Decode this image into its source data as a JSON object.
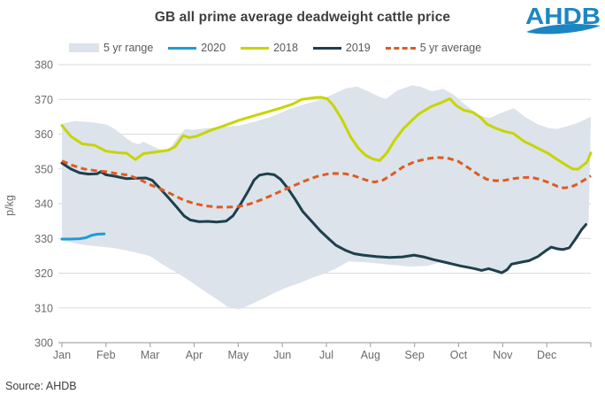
{
  "header": {
    "title": "GB all prime average deadweight cattle price",
    "logo_text": "AHDB",
    "logo_color": "#1b86c3"
  },
  "legend": {
    "items": [
      {
        "label": "5 yr range",
        "color": "#dce3ea",
        "swatch": "area"
      },
      {
        "label": "2020",
        "color": "#1d9cd8",
        "swatch": "line"
      },
      {
        "label": "2018",
        "color": "#c8d400",
        "swatch": "line"
      },
      {
        "label": "2019",
        "color": "#1e3f4c",
        "swatch": "line"
      },
      {
        "label": "5 yr average",
        "color": "#df5b1f",
        "swatch": "dash"
      }
    ]
  },
  "source": "Source: AHDB",
  "chart_data": {
    "type": "line",
    "title": "GB all prime average deadweight cattle price",
    "ylabel": "p/kg",
    "ylim": [
      300,
      380
    ],
    "yticks": [
      380,
      370,
      360,
      350,
      340,
      330,
      320,
      310,
      300
    ],
    "xtick_labels": [
      "Jan",
      "Feb",
      "Mar",
      "Apr",
      "May",
      "Jun",
      "Jul",
      "Aug",
      "Sep",
      "Oct",
      "Nov",
      "Dec"
    ],
    "x_unit": "month (0 = start Jan, 12 = end Dec)",
    "grid": "horizontal",
    "legend_position": "top",
    "range": {
      "name": "5 yr range",
      "fill": "#dce3ea",
      "top_x": [
        0,
        0.3,
        0.7,
        1.0,
        1.2,
        1.45,
        1.6,
        1.75,
        1.85,
        2.0,
        2.2,
        2.4,
        2.65,
        2.8,
        2.95,
        3.3,
        3.7,
        4.0,
        4.4,
        4.75,
        5.15,
        5.55,
        5.85,
        6.1,
        6.45,
        6.7,
        7.0,
        7.2,
        7.35,
        7.6,
        7.95,
        8.15,
        8.4,
        8.65,
        8.9,
        9.1,
        9.3,
        9.5,
        9.7,
        9.95,
        10.25,
        10.5,
        10.8,
        11.05,
        11.25,
        11.65,
        12
      ],
      "top_values": [
        363,
        363.8,
        363.4,
        362.8,
        361.5,
        358.9,
        357.6,
        357.1,
        357.8,
        356.9,
        355.7,
        355.0,
        359.5,
        361.5,
        361.2,
        361.7,
        362.1,
        362.4,
        363.7,
        365.0,
        367.1,
        368.8,
        369.8,
        371.2,
        373.2,
        373.7,
        372.0,
        370.8,
        370.1,
        372.5,
        374.1,
        373.6,
        372.3,
        373.1,
        371.2,
        369.0,
        367.0,
        365.3,
        364.6,
        366.0,
        367.5,
        365.0,
        362.8,
        361.7,
        361.5,
        363.0,
        365.0
      ],
      "bottom_x": [
        0,
        0.4,
        0.8,
        1.2,
        1.6,
        2.0,
        2.3,
        2.6,
        2.9,
        3.2,
        3.5,
        3.75,
        4.0,
        4.2,
        4.5,
        4.8,
        5.1,
        5.4,
        5.7,
        5.95,
        6.2,
        6.5,
        6.9,
        7.4,
        7.9,
        8.3,
        8.63,
        9.04,
        9.4,
        9.52,
        9.68,
        9.98,
        10.2,
        10.6,
        10.96,
        11.1,
        11.37,
        11.65,
        11.89,
        11.95
      ],
      "bottom_values": [
        329.4,
        328.3,
        327.7,
        327.2,
        326.2,
        324.9,
        322.4,
        320.2,
        317.8,
        315.1,
        312.6,
        310.4,
        309.6,
        310.5,
        312.3,
        314.2,
        315.9,
        317.2,
        318.8,
        319.8,
        321.2,
        323.4,
        323.1,
        322.5,
        321.9,
        322.1,
        323.3,
        322.1,
        321.2,
        320.8,
        321.3,
        320.1,
        322.6,
        323.6,
        326.3,
        327.5,
        326.8,
        329.8,
        334.0,
        334.5
      ]
    },
    "series": [
      {
        "name": "2018",
        "color": "#c8d400",
        "style": "solid",
        "x": [
          0,
          0.2,
          0.46,
          0.74,
          1.0,
          1.24,
          1.47,
          1.67,
          1.85,
          2.15,
          2.41,
          2.57,
          2.75,
          2.89,
          3.05,
          3.35,
          3.65,
          4.02,
          4.36,
          4.66,
          4.96,
          5.24,
          5.44,
          5.72,
          5.88,
          6.02,
          6.16,
          6.35,
          6.55,
          6.73,
          6.89,
          7.05,
          7.21,
          7.37,
          7.55,
          7.75,
          7.95,
          8.11,
          8.39,
          8.59,
          8.8,
          8.96,
          9.12,
          9.32,
          9.5,
          9.64,
          9.84,
          10.04,
          10.24,
          10.5,
          10.64,
          10.84,
          11.04,
          11.24,
          11.45,
          11.59,
          11.71,
          11.91,
          12
        ],
        "values": [
          362.5,
          359.4,
          357.2,
          356.8,
          355.1,
          354.7,
          354.5,
          352.7,
          354.4,
          354.9,
          355.4,
          356.4,
          359.6,
          359.0,
          359.4,
          361.0,
          362.3,
          364.0,
          365.3,
          366.4,
          367.5,
          368.7,
          370.0,
          370.5,
          370.6,
          370.2,
          368.2,
          364.3,
          359.2,
          355.9,
          353.9,
          352.9,
          352.4,
          354.6,
          358.3,
          361.6,
          364.1,
          365.9,
          368.0,
          369.0,
          370.2,
          368.1,
          366.9,
          366.3,
          364.8,
          362.9,
          361.7,
          360.8,
          360.2,
          357.8,
          357.0,
          355.7,
          354.4,
          352.7,
          351.0,
          350.0,
          349.9,
          351.9,
          354.6
        ]
      },
      {
        "name": "2019",
        "color": "#1e3f4c",
        "style": "solid",
        "x": [
          0,
          0.2,
          0.4,
          0.6,
          0.8,
          0.88,
          1.0,
          1.2,
          1.45,
          1.71,
          1.91,
          2.05,
          2.21,
          2.41,
          2.61,
          2.77,
          2.91,
          3.11,
          3.31,
          3.51,
          3.73,
          3.88,
          4.06,
          4.22,
          4.36,
          4.48,
          4.66,
          4.82,
          4.96,
          5.12,
          5.28,
          5.46,
          5.66,
          5.86,
          6.06,
          6.22,
          6.43,
          6.63,
          6.83,
          7.13,
          7.43,
          7.73,
          7.99,
          8.23,
          8.43,
          8.63,
          8.84,
          9.04,
          9.24,
          9.4,
          9.52,
          9.68,
          9.84,
          9.98,
          10.1,
          10.2,
          10.44,
          10.6,
          10.8,
          10.96,
          11.1,
          11.24,
          11.37,
          11.51,
          11.65,
          11.79,
          11.89
        ],
        "values": [
          351.7,
          350.0,
          348.9,
          348.5,
          348.6,
          349.2,
          348.3,
          347.9,
          347.2,
          347.3,
          347.4,
          346.7,
          344.6,
          341.8,
          338.9,
          336.5,
          335.3,
          334.8,
          334.9,
          334.7,
          335.0,
          336.5,
          340.0,
          343.5,
          346.8,
          348.2,
          348.6,
          348.3,
          347.0,
          344.5,
          341.5,
          337.8,
          335.0,
          332.2,
          329.8,
          328.0,
          326.6,
          325.6,
          325.2,
          324.8,
          324.5,
          324.7,
          325.2,
          324.6,
          323.9,
          323.3,
          322.7,
          322.1,
          321.6,
          321.2,
          320.8,
          321.3,
          320.7,
          320.1,
          321.0,
          322.6,
          323.2,
          323.6,
          324.8,
          326.3,
          327.5,
          327.0,
          326.8,
          327.3,
          329.8,
          332.5,
          334.0
        ]
      },
      {
        "name": "5 yr average",
        "color": "#df5b1f",
        "style": "dashed",
        "x": [
          0,
          0.24,
          0.5,
          0.76,
          1.0,
          1.27,
          1.51,
          1.77,
          2.01,
          2.25,
          2.51,
          2.77,
          3.01,
          3.25,
          3.51,
          3.78,
          4.02,
          4.26,
          4.52,
          4.78,
          5.02,
          5.28,
          5.52,
          5.78,
          6.02,
          6.18,
          6.43,
          6.63,
          6.87,
          7.09,
          7.29,
          7.49,
          7.73,
          7.99,
          8.27,
          8.49,
          8.73,
          8.99,
          9.2,
          9.44,
          9.64,
          9.84,
          10.04,
          10.24,
          10.44,
          10.64,
          10.84,
          11.04,
          11.24,
          11.39,
          11.55,
          11.71,
          11.85,
          12
        ],
        "values": [
          352.3,
          351.0,
          350.0,
          349.5,
          349.2,
          348.6,
          348.2,
          346.9,
          345.4,
          344.2,
          342.6,
          341.0,
          340.0,
          339.4,
          339.0,
          339.0,
          339.2,
          339.9,
          341.1,
          342.5,
          343.9,
          345.3,
          346.6,
          347.8,
          348.5,
          348.7,
          348.6,
          348.0,
          346.9,
          346.2,
          346.8,
          348.4,
          350.5,
          352.0,
          352.9,
          353.3,
          353.2,
          352.2,
          350.5,
          348.4,
          347.0,
          346.6,
          346.7,
          347.2,
          347.5,
          347.6,
          347.0,
          346.1,
          345.0,
          344.5,
          344.8,
          345.7,
          346.8,
          348.0
        ]
      },
      {
        "name": "2020",
        "color": "#1d9cd8",
        "style": "solid",
        "x": [
          0,
          0.2,
          0.4,
          0.54,
          0.68,
          0.8,
          0.96
        ],
        "values": [
          329.8,
          329.8,
          329.9,
          330.2,
          330.9,
          331.2,
          331.3
        ]
      }
    ]
  }
}
